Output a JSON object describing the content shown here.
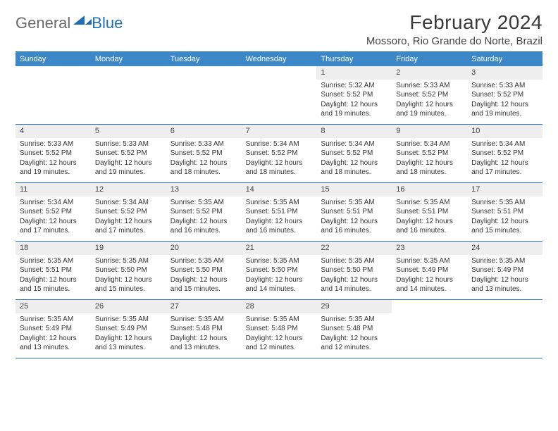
{
  "logo": {
    "general": "General",
    "blue": "Blue"
  },
  "title": "February 2024",
  "location": "Mossoro, Rio Grande do Norte, Brazil",
  "colors": {
    "header_bar": "#3b87c8",
    "border": "#2a72b5",
    "daynum_bg": "#eeeeee",
    "text": "#333333",
    "logo_gray": "#6a6a6a",
    "logo_blue": "#1f6fb2"
  },
  "weekdays": [
    "Sunday",
    "Monday",
    "Tuesday",
    "Wednesday",
    "Thursday",
    "Friday",
    "Saturday"
  ],
  "labels": {
    "sunrise": "Sunrise: ",
    "sunset": "Sunset: ",
    "daylight": "Daylight: "
  },
  "weeks": [
    [
      {
        "empty": true
      },
      {
        "empty": true
      },
      {
        "empty": true
      },
      {
        "empty": true
      },
      {
        "n": "1",
        "sr": "5:32 AM",
        "ss": "5:52 PM",
        "dl": "12 hours and 19 minutes."
      },
      {
        "n": "2",
        "sr": "5:33 AM",
        "ss": "5:52 PM",
        "dl": "12 hours and 19 minutes."
      },
      {
        "n": "3",
        "sr": "5:33 AM",
        "ss": "5:52 PM",
        "dl": "12 hours and 19 minutes."
      }
    ],
    [
      {
        "n": "4",
        "sr": "5:33 AM",
        "ss": "5:52 PM",
        "dl": "12 hours and 19 minutes."
      },
      {
        "n": "5",
        "sr": "5:33 AM",
        "ss": "5:52 PM",
        "dl": "12 hours and 19 minutes."
      },
      {
        "n": "6",
        "sr": "5:33 AM",
        "ss": "5:52 PM",
        "dl": "12 hours and 18 minutes."
      },
      {
        "n": "7",
        "sr": "5:34 AM",
        "ss": "5:52 PM",
        "dl": "12 hours and 18 minutes."
      },
      {
        "n": "8",
        "sr": "5:34 AM",
        "ss": "5:52 PM",
        "dl": "12 hours and 18 minutes."
      },
      {
        "n": "9",
        "sr": "5:34 AM",
        "ss": "5:52 PM",
        "dl": "12 hours and 18 minutes."
      },
      {
        "n": "10",
        "sr": "5:34 AM",
        "ss": "5:52 PM",
        "dl": "12 hours and 17 minutes."
      }
    ],
    [
      {
        "n": "11",
        "sr": "5:34 AM",
        "ss": "5:52 PM",
        "dl": "12 hours and 17 minutes."
      },
      {
        "n": "12",
        "sr": "5:34 AM",
        "ss": "5:52 PM",
        "dl": "12 hours and 17 minutes."
      },
      {
        "n": "13",
        "sr": "5:35 AM",
        "ss": "5:52 PM",
        "dl": "12 hours and 16 minutes."
      },
      {
        "n": "14",
        "sr": "5:35 AM",
        "ss": "5:51 PM",
        "dl": "12 hours and 16 minutes."
      },
      {
        "n": "15",
        "sr": "5:35 AM",
        "ss": "5:51 PM",
        "dl": "12 hours and 16 minutes."
      },
      {
        "n": "16",
        "sr": "5:35 AM",
        "ss": "5:51 PM",
        "dl": "12 hours and 16 minutes."
      },
      {
        "n": "17",
        "sr": "5:35 AM",
        "ss": "5:51 PM",
        "dl": "12 hours and 15 minutes."
      }
    ],
    [
      {
        "n": "18",
        "sr": "5:35 AM",
        "ss": "5:51 PM",
        "dl": "12 hours and 15 minutes."
      },
      {
        "n": "19",
        "sr": "5:35 AM",
        "ss": "5:50 PM",
        "dl": "12 hours and 15 minutes."
      },
      {
        "n": "20",
        "sr": "5:35 AM",
        "ss": "5:50 PM",
        "dl": "12 hours and 15 minutes."
      },
      {
        "n": "21",
        "sr": "5:35 AM",
        "ss": "5:50 PM",
        "dl": "12 hours and 14 minutes."
      },
      {
        "n": "22",
        "sr": "5:35 AM",
        "ss": "5:50 PM",
        "dl": "12 hours and 14 minutes."
      },
      {
        "n": "23",
        "sr": "5:35 AM",
        "ss": "5:49 PM",
        "dl": "12 hours and 14 minutes."
      },
      {
        "n": "24",
        "sr": "5:35 AM",
        "ss": "5:49 PM",
        "dl": "12 hours and 13 minutes."
      }
    ],
    [
      {
        "n": "25",
        "sr": "5:35 AM",
        "ss": "5:49 PM",
        "dl": "12 hours and 13 minutes."
      },
      {
        "n": "26",
        "sr": "5:35 AM",
        "ss": "5:49 PM",
        "dl": "12 hours and 13 minutes."
      },
      {
        "n": "27",
        "sr": "5:35 AM",
        "ss": "5:48 PM",
        "dl": "12 hours and 13 minutes."
      },
      {
        "n": "28",
        "sr": "5:35 AM",
        "ss": "5:48 PM",
        "dl": "12 hours and 12 minutes."
      },
      {
        "n": "29",
        "sr": "5:35 AM",
        "ss": "5:48 PM",
        "dl": "12 hours and 12 minutes."
      },
      {
        "empty": true
      },
      {
        "empty": true
      }
    ]
  ]
}
